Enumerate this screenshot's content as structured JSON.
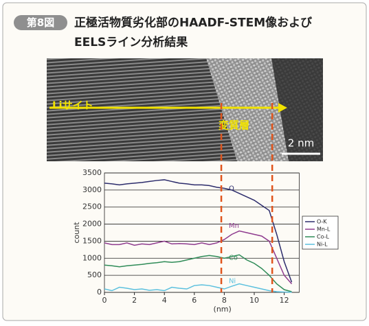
{
  "header": {
    "label": "第8図",
    "title_lines": [
      "正極活物質劣化部のHAADF-STEM像および",
      "EELSライン分析結果"
    ]
  },
  "image": {
    "arrow_label": "Liサイト",
    "region_label": "変質層",
    "scale_bar": "2 nm"
  },
  "chart_data": {
    "type": "line",
    "xlabel": "(nm)",
    "ylabel": "count",
    "x": [
      0,
      0.5,
      1,
      1.5,
      2,
      2.5,
      3,
      3.5,
      4,
      4.5,
      5,
      5.5,
      6,
      6.5,
      7,
      7.5,
      8,
      8.5,
      9,
      9.5,
      10,
      10.5,
      11,
      11.5,
      12,
      12.5
    ],
    "series": [
      {
        "name": "O-K",
        "color": "#2b2b6b",
        "values": [
          3200,
          3180,
          3150,
          3180,
          3200,
          3220,
          3250,
          3280,
          3300,
          3250,
          3200,
          3180,
          3150,
          3150,
          3130,
          3080,
          3050,
          3000,
          2900,
          2800,
          2700,
          2550,
          2400,
          1700,
          900,
          300
        ]
      },
      {
        "name": "Mn-L",
        "color": "#8e3a8e",
        "values": [
          1450,
          1400,
          1400,
          1450,
          1380,
          1420,
          1400,
          1450,
          1500,
          1420,
          1430,
          1420,
          1400,
          1450,
          1400,
          1450,
          1550,
          1700,
          1800,
          1750,
          1700,
          1650,
          1500,
          1000,
          500,
          250
        ]
      },
      {
        "name": "Co-L",
        "color": "#2e8b57",
        "values": [
          800,
          780,
          750,
          780,
          800,
          820,
          850,
          870,
          900,
          880,
          900,
          950,
          1000,
          1050,
          1080,
          1050,
          1000,
          1050,
          1100,
          950,
          850,
          700,
          500,
          250,
          80,
          20
        ]
      },
      {
        "name": "Ni-L",
        "color": "#5bc0de",
        "values": [
          100,
          50,
          150,
          120,
          80,
          100,
          60,
          80,
          50,
          150,
          120,
          100,
          200,
          220,
          200,
          150,
          100,
          180,
          250,
          200,
          150,
          100,
          50,
          20,
          10,
          5
        ]
      }
    ],
    "annotations": [
      {
        "text": "O",
        "x": 8.3,
        "y": 3050,
        "color": "#2b2b6b"
      },
      {
        "text": "Mn",
        "x": 8.3,
        "y": 1950,
        "color": "#8e3a8e"
      },
      {
        "text": "Co",
        "x": 8.3,
        "y": 1020,
        "color": "#2e8b57"
      },
      {
        "text": "Ni",
        "x": 8.3,
        "y": 330,
        "color": "#5bc0de"
      }
    ],
    "vlines": [
      7.8,
      11.2
    ],
    "xlim": [
      0,
      13
    ],
    "ylim": [
      0,
      3500
    ],
    "xticks": [
      0,
      2,
      4,
      6,
      8,
      10,
      12
    ],
    "yticks": [
      0,
      500,
      1000,
      1500,
      2000,
      2500,
      3000,
      3500
    ],
    "grid": true
  }
}
